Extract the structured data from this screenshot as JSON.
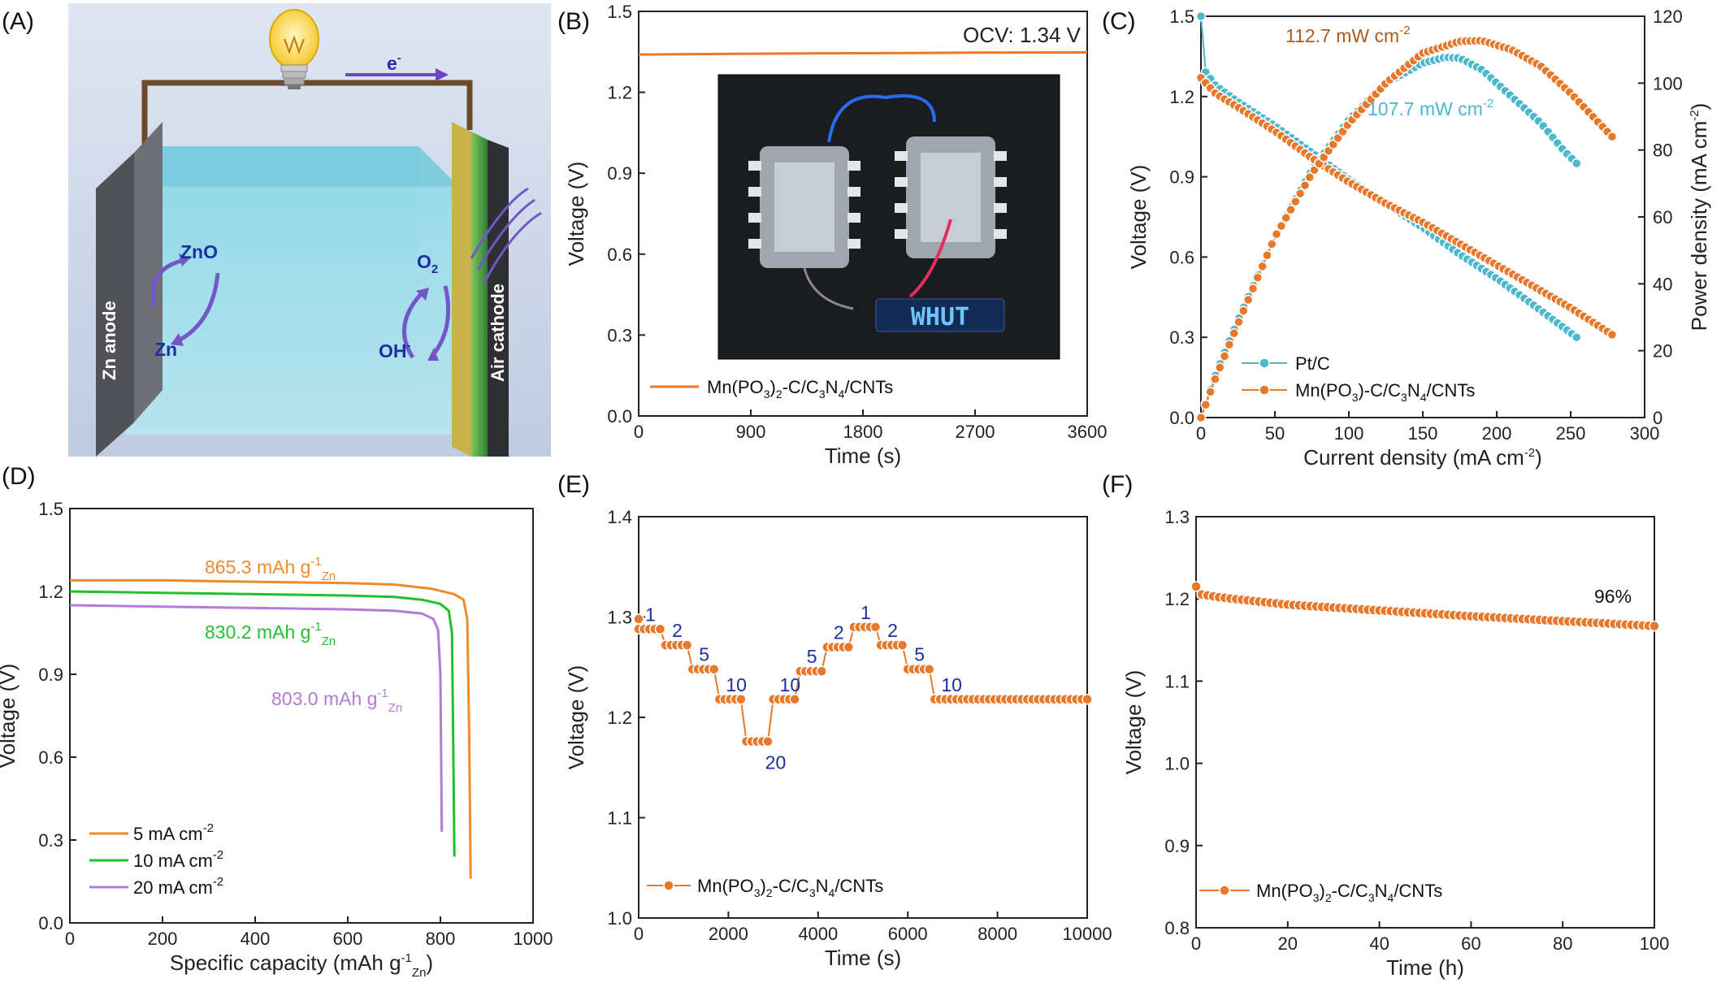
{
  "colors": {
    "orange": "#e8782a",
    "orange_d": "#f08a2c",
    "green": "#22c02c",
    "purple": "#b27cd6",
    "cyan": "#4cb8cc",
    "navy": "#1d2f9e",
    "brown": "#b05a1a"
  },
  "panels": {
    "A": {
      "label": "(A)",
      "zn_anode": "Zn anode",
      "air_cathode": "Air cathode",
      "electron": "e",
      "electron_sup": "-",
      "zno": "ZnO",
      "zn": "Zn",
      "o2": "O",
      "o2_sub": "2",
      "oh": "OH",
      "oh_sup": "-",
      "bulb_icon": "light-bulb-icon"
    },
    "B": {
      "label": "(B)",
      "photo_text": "WHUT",
      "photo_icon": "zinc-air-battery-device-photo"
    },
    "C": {
      "label": "(C)"
    },
    "D": {
      "label": "(D)"
    },
    "E": {
      "label": "(E)"
    },
    "F": {
      "label": "(F)"
    }
  },
  "chart_data": [
    {
      "panel": "B",
      "type": "line",
      "xlabel": "Time (s)",
      "ylabel": "Voltage (V)",
      "xlim": [
        0,
        3600
      ],
      "ylim": [
        0.0,
        1.5
      ],
      "xticks": [
        0,
        900,
        1800,
        2700,
        3600
      ],
      "yticks": [
        0.0,
        0.3,
        0.6,
        0.9,
        1.2,
        1.5
      ],
      "annotation": "OCV: 1.34 V",
      "series": [
        {
          "name": "Mn(PO3)2-C/C3N4/CNTs",
          "x": [
            0,
            900,
            1800,
            2700,
            3600
          ],
          "y": [
            1.34,
            1.343,
            1.345,
            1.347,
            1.348
          ]
        }
      ]
    },
    {
      "panel": "C",
      "type": "scatter",
      "xlabel": "Current density (mA cm-2)",
      "ylabel": "Voltage (V)",
      "y2label": "Power density (mA cm-2)",
      "xlim": [
        0,
        300
      ],
      "ylim": [
        0.0,
        1.5
      ],
      "y2lim": [
        0,
        120
      ],
      "xticks": [
        0,
        50,
        100,
        150,
        200,
        250,
        300
      ],
      "yticks": [
        0.0,
        0.3,
        0.6,
        0.9,
        1.2,
        1.5
      ],
      "y2ticks": [
        0,
        20,
        40,
        60,
        80,
        100,
        120
      ],
      "annotations": [
        {
          "text": "112.7 mW cm",
          "sup": "-2",
          "series": "Mn(PO3)-C/C3N4/CNTs"
        },
        {
          "text": "107.7 mW cm",
          "sup": "-2",
          "series": "Pt/C"
        }
      ],
      "series": [
        {
          "name": "Pt/C",
          "kind": "voltage",
          "x": [
            0,
            2,
            10,
            25,
            50,
            75,
            100,
            125,
            150,
            175,
            200,
            225,
            254
          ],
          "y": [
            1.5,
            1.3,
            1.24,
            1.18,
            1.09,
            0.99,
            0.89,
            0.8,
            0.71,
            0.61,
            0.52,
            0.42,
            0.3
          ]
        },
        {
          "name": "Pt/C",
          "kind": "power",
          "x": [
            0,
            10,
            25,
            50,
            75,
            100,
            125,
            150,
            165,
            175,
            190,
            210,
            230,
            245,
            254
          ],
          "y": [
            0,
            13,
            29,
            54,
            74,
            89,
            100,
            106,
            107.7,
            107.5,
            104,
            96,
            88,
            80,
            76
          ]
        },
        {
          "name": "Mn(PO3)-C/C3N4/CNTs",
          "kind": "voltage",
          "x": [
            0,
            10,
            25,
            50,
            75,
            100,
            125,
            150,
            175,
            200,
            225,
            250,
            278
          ],
          "y": [
            1.27,
            1.21,
            1.16,
            1.07,
            0.97,
            0.88,
            0.8,
            0.73,
            0.65,
            0.57,
            0.49,
            0.41,
            0.31
          ]
        },
        {
          "name": "Mn(PO3)-C/C3N4/CNTs",
          "kind": "power",
          "x": [
            0,
            10,
            25,
            50,
            75,
            100,
            125,
            150,
            175,
            190,
            210,
            230,
            250,
            265,
            278
          ],
          "y": [
            0,
            12,
            28,
            54,
            73,
            88,
            100,
            109,
            112.5,
            112.7,
            110,
            105,
            97,
            90,
            84
          ]
        }
      ]
    },
    {
      "panel": "D",
      "type": "line",
      "xlabel": "Specific capacity (mAh g",
      "xlabel_sup": "-1",
      "xlabel_sub": "Zn",
      "xlabel_end": ")",
      "ylabel": "Voltage (V)",
      "xlim": [
        0,
        1000
      ],
      "ylim": [
        0.0,
        1.5
      ],
      "xticks": [
        0,
        200,
        400,
        600,
        800,
        1000
      ],
      "yticks": [
        0.0,
        0.3,
        0.6,
        0.9,
        1.2,
        1.5
      ],
      "annotations": [
        {
          "text": "865.3 mAh g",
          "sup": "-1",
          "sub": "Zn",
          "series": "5 mA cm-2"
        },
        {
          "text": "830.2 mAh g",
          "sup": "-1",
          "sub": "Zn",
          "series": "10 mA cm-2"
        },
        {
          "text": "803.0 mAh g",
          "sup": "-1",
          "sub": "Zn",
          "series": "20 mA cm-2"
        }
      ],
      "series": [
        {
          "name": "5 mA cm",
          "sup": "-2",
          "x": [
            0,
            200,
            400,
            600,
            700,
            780,
            830,
            850,
            858,
            862,
            865.3
          ],
          "y": [
            1.24,
            1.24,
            1.235,
            1.23,
            1.225,
            1.21,
            1.19,
            1.17,
            1.1,
            0.7,
            0.16
          ]
        },
        {
          "name": "10 mA cm",
          "sup": "-2",
          "x": [
            0,
            200,
            400,
            600,
            700,
            760,
            800,
            818,
            825,
            828,
            830.2
          ],
          "y": [
            1.2,
            1.195,
            1.19,
            1.185,
            1.18,
            1.17,
            1.155,
            1.13,
            1.05,
            0.6,
            0.24
          ]
        },
        {
          "name": "20 mA cm",
          "sup": "-2",
          "x": [
            0,
            200,
            400,
            600,
            700,
            760,
            785,
            795,
            800,
            803.0
          ],
          "y": [
            1.15,
            1.145,
            1.14,
            1.135,
            1.13,
            1.12,
            1.1,
            1.06,
            0.9,
            0.33
          ]
        }
      ]
    },
    {
      "panel": "E",
      "type": "scatter",
      "xlabel": "Time (s)",
      "ylabel": "Voltage (V)",
      "xlim": [
        0,
        10000
      ],
      "ylim": [
        1.0,
        1.4
      ],
      "xticks": [
        0,
        2000,
        4000,
        6000,
        8000,
        10000
      ],
      "yticks": [
        1.0,
        1.1,
        1.2,
        1.3,
        1.4
      ],
      "step_labels": [
        "1",
        "2",
        "5",
        "10",
        "20",
        "10",
        "5",
        "2",
        "1",
        "2",
        "5",
        "10"
      ],
      "steps": [
        {
          "t0": 0,
          "t1": 600,
          "v": 1.288
        },
        {
          "t0": 600,
          "t1": 1200,
          "v": 1.272
        },
        {
          "t0": 1200,
          "t1": 1800,
          "v": 1.248
        },
        {
          "t0": 1800,
          "t1": 2400,
          "v": 1.218
        },
        {
          "t0": 2400,
          "t1": 3000,
          "v": 1.176
        },
        {
          "t0": 3000,
          "t1": 3600,
          "v": 1.218
        },
        {
          "t0": 3600,
          "t1": 4200,
          "v": 1.246
        },
        {
          "t0": 4200,
          "t1": 4800,
          "v": 1.27
        },
        {
          "t0": 4800,
          "t1": 5400,
          "v": 1.29
        },
        {
          "t0": 5400,
          "t1": 6000,
          "v": 1.272
        },
        {
          "t0": 6000,
          "t1": 6600,
          "v": 1.248
        },
        {
          "t0": 6600,
          "t1": 10000,
          "v": 1.218
        }
      ],
      "series": [
        {
          "name": "Mn(PO3)2-C/C3N4/CNTs"
        }
      ]
    },
    {
      "panel": "F",
      "type": "scatter",
      "xlabel": "Time (h)",
      "ylabel": "Voltage (V)",
      "xlim": [
        0,
        100
      ],
      "ylim": [
        0.8,
        1.3
      ],
      "xticks": [
        0,
        20,
        40,
        60,
        80,
        100
      ],
      "yticks": [
        0.8,
        0.9,
        1.0,
        1.1,
        1.2,
        1.3
      ],
      "annotation": "96%",
      "series": [
        {
          "name": "Mn(PO3)2-C/C3N4/CNTs",
          "x": [
            0,
            0.5,
            5,
            20,
            40,
            60,
            80,
            100
          ],
          "y": [
            1.215,
            1.206,
            1.202,
            1.193,
            1.186,
            1.179,
            1.173,
            1.167
          ]
        }
      ]
    }
  ]
}
